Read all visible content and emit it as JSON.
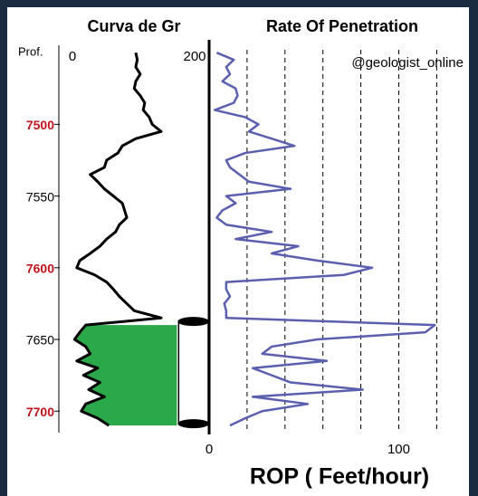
{
  "chart_data": {
    "type": "well-log",
    "ylabel": "Prof.",
    "annotation": "@geologist_online",
    "xlabel": "ROP ( Feet/hour)",
    "y": [
      7450,
      7455,
      7460,
      7465,
      7470,
      7475,
      7480,
      7485,
      7490,
      7495,
      7500,
      7505,
      7510,
      7515,
      7520,
      7525,
      7530,
      7535,
      7540,
      7545,
      7550,
      7555,
      7560,
      7565,
      7570,
      7575,
      7580,
      7585,
      7590,
      7595,
      7600,
      7605,
      7610,
      7615,
      7620,
      7625,
      7630,
      7635,
      7640,
      7645,
      7650,
      7655,
      7660,
      7665,
      7670,
      7675,
      7680,
      7685,
      7690,
      7695,
      7700,
      7705,
      7710
    ],
    "ylim": [
      7448,
      7715
    ],
    "yticks": [
      7500,
      7550,
      7600,
      7650,
      7700
    ],
    "ytick_colors": [
      "#c0131b",
      "#000000",
      "#c0131b",
      "#000000",
      "#c0131b"
    ],
    "tracks": [
      {
        "title": "Curva de Gr",
        "xlim": [
          0,
          200
        ],
        "xticks": [
          0,
          200
        ],
        "color": "#000000",
        "values": [
          103,
          105,
          103,
          109,
          103,
          101,
          109,
          115,
          113,
          121,
          125,
          137,
          103,
          85,
          79,
          64,
          61,
          42,
          52,
          61,
          73,
          85,
          88,
          91,
          81,
          76,
          64,
          55,
          42,
          28,
          24,
          48,
          64,
          73,
          81,
          91,
          101,
          137,
          36,
          28,
          21,
          36,
          42,
          24,
          52,
          33,
          55,
          40,
          61,
          36,
          30,
          52,
          67
        ],
        "shading": {
          "from": 7640,
          "to": 7710,
          "to_value": 158,
          "color": "#2aa84a"
        }
      },
      {
        "title": "Rate Of Penetration",
        "xlim": [
          0,
          137
        ],
        "xticks": [
          0,
          100
        ],
        "grid": [
          20,
          40,
          60,
          80,
          100,
          120
        ],
        "color": "#5a5fae",
        "values": [
          4,
          13,
          9,
          11,
          7,
          14,
          15,
          13,
          3,
          19,
          26,
          21,
          33,
          45,
          19,
          9,
          11,
          16,
          21,
          43,
          9,
          14,
          7,
          4,
          9,
          33,
          14,
          47,
          33,
          57,
          86,
          71,
          9,
          9,
          11,
          8,
          9,
          9,
          119,
          114,
          57,
          33,
          28,
          62,
          23,
          33,
          43,
          81,
          23,
          52,
          28,
          19,
          11
        ]
      }
    ]
  }
}
